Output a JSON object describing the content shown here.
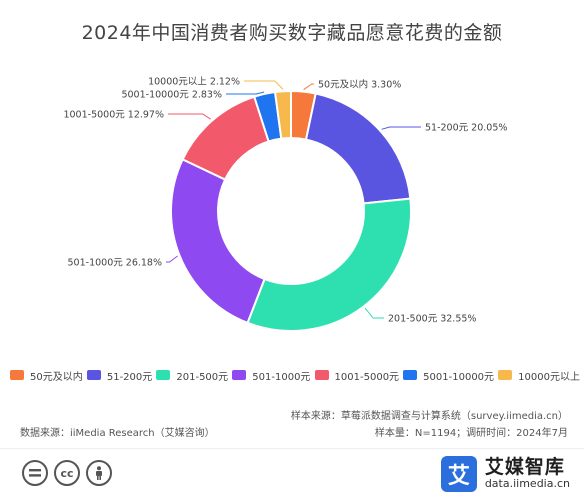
{
  "chart_data": {
    "type": "pie",
    "title": "2024年中国消费者购买数字藏品愿意花费的金额",
    "style": "donut",
    "categories": [
      "50元及以内",
      "51-200元",
      "201-500元",
      "501-1000元",
      "1001-5000元",
      "5001-10000元",
      "10000元以上"
    ],
    "values": [
      3.3,
      20.05,
      32.55,
      26.18,
      12.97,
      2.83,
      2.12
    ],
    "unit": "%",
    "colors": [
      "#f5793a",
      "#5a55e0",
      "#2ee0b0",
      "#8f49f0",
      "#f2596a",
      "#1f74f0",
      "#f7b94c"
    ],
    "data_labels": [
      "50元及以内 3.30%",
      "51-200元 20.05%",
      "201-500元 32.55%",
      "501-1000元 26.18%",
      "1001-5000元 12.97%",
      "5001-10000元 2.83%",
      "10000元以上 2.12%"
    ],
    "legend_position": "bottom"
  },
  "footer": {
    "data_source": "数据来源：iiMedia Research（艾媒咨询）",
    "sample_source": "样本来源：草莓派数据调查与计算系统（survey.iimedia.cn）",
    "sample_size": "样本量：N=1194；调研时间：2024年7月"
  },
  "brand": {
    "logo_glyph": "艾",
    "name": "艾媒智库",
    "url": "data.iimedia.cn"
  },
  "license": {
    "icons": [
      "equals-icon",
      "cc-icon",
      "person-icon"
    ],
    "cc_glyph": "cc"
  }
}
